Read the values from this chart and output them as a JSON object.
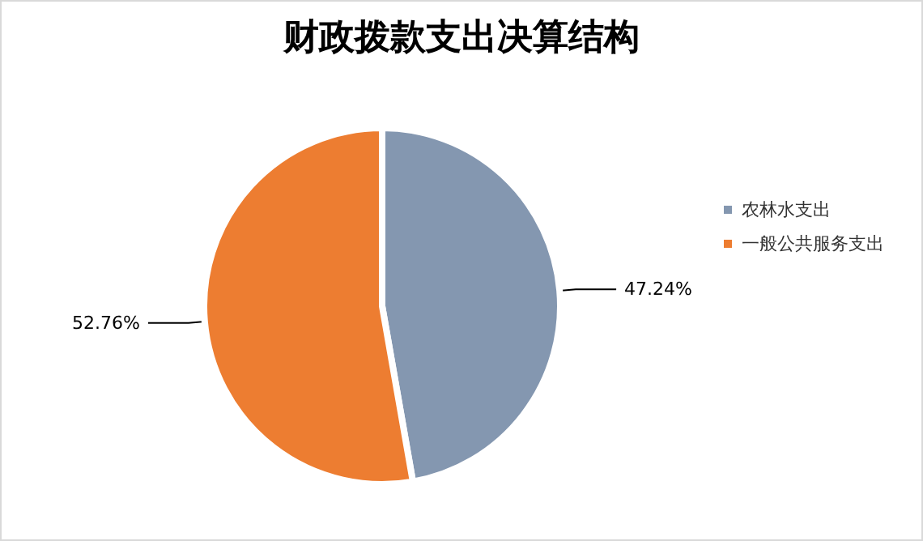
{
  "chart_data": {
    "type": "pie",
    "title": "财政拨款支出决算结构",
    "categories": [
      "农林水支出",
      "一般公共服务支出"
    ],
    "values": [
      47.24,
      52.76
    ],
    "colors": [
      "#8497b0",
      "#ed7d31"
    ],
    "value_labels": [
      "47.24%",
      "52.76%"
    ],
    "legend": "right"
  }
}
